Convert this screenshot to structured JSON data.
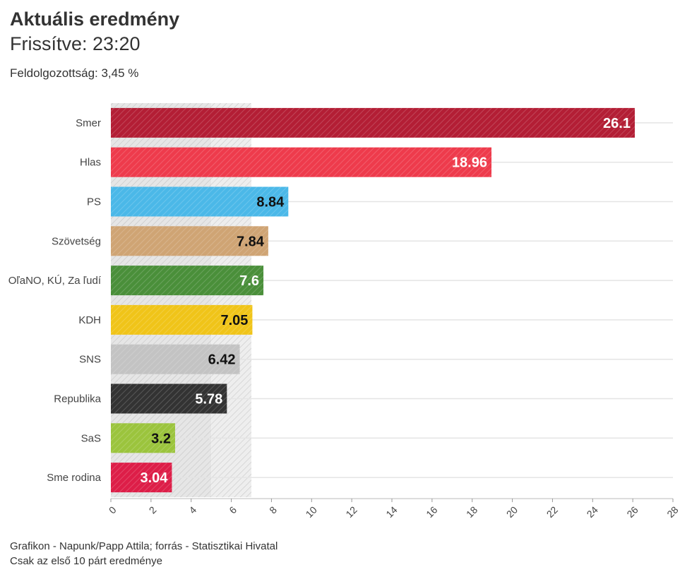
{
  "header": {
    "title": "Aktuális eredmény",
    "subtitle": "Frissítve: 23:20",
    "processed": "Feldolgozottság: 3,45 %"
  },
  "footer": {
    "source": "Grafikon - Napunk/Papp Attila; forrás - Statisztikai Hivatal",
    "note": "Csak az első 10 párt eredménye"
  },
  "chart_data": {
    "type": "bar",
    "orientation": "horizontal",
    "categories": [
      "Smer",
      "Hlas",
      "PS",
      "Szövetség",
      "OľaNO, KÚ, Za ľudí",
      "KDH",
      "SNS",
      "Republika",
      "SaS",
      "Sme rodina"
    ],
    "values": [
      26.1,
      18.96,
      8.84,
      7.84,
      7.6,
      7.05,
      6.42,
      5.78,
      3.2,
      3.04
    ],
    "value_labels": [
      "26.1",
      "18.96",
      "8.84",
      "7.84",
      "7.6",
      "7.05",
      "6.42",
      "5.78",
      "3.2",
      "3.04"
    ],
    "colors": [
      "#b31e35",
      "#ee3b4c",
      "#4bb8e8",
      "#cfa474",
      "#4a8f3a",
      "#f0c419",
      "#c3c3c3",
      "#333333",
      "#9bc43d",
      "#dd1e48"
    ],
    "label_colors": [
      "#ffffff",
      "#ffffff",
      "#111111",
      "#111111",
      "#ffffff",
      "#111111",
      "#111111",
      "#ffffff",
      "#111111",
      "#ffffff"
    ],
    "xlim": [
      0,
      28
    ],
    "xticks": [
      "0",
      "2",
      "4",
      "6",
      "8",
      "10",
      "12",
      "14",
      "16",
      "18",
      "20",
      "22",
      "24",
      "26",
      "28"
    ],
    "threshold_bands": [
      [
        0,
        5
      ],
      [
        5,
        7
      ]
    ],
    "grid": true
  }
}
